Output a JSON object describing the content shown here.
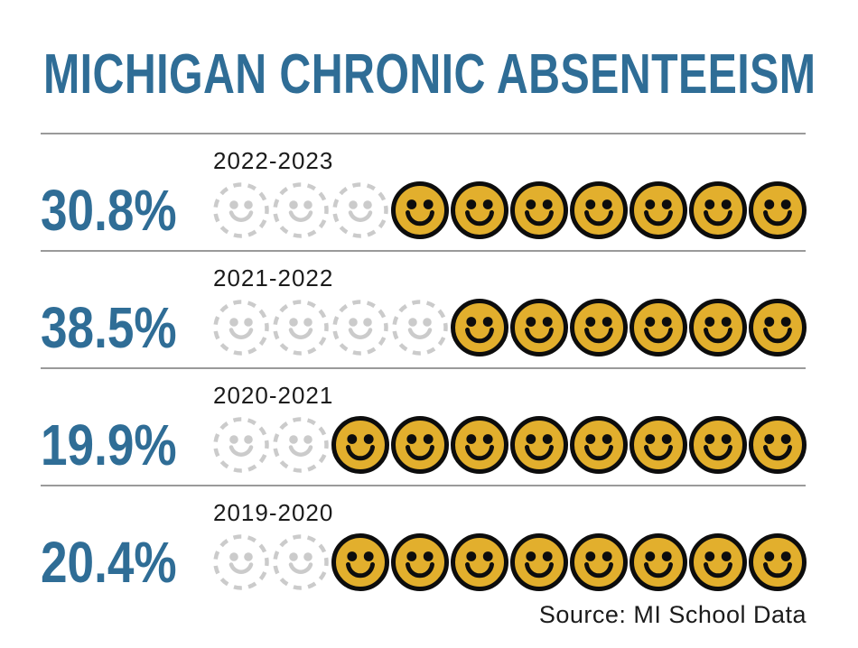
{
  "title": "MICHIGAN CHRONIC ABSENTEEISM",
  "source": "Source: MI School Data",
  "colors": {
    "accent_blue": "#2F6D96",
    "smiley_yellow": "#E2AF2D",
    "smiley_outline": "#0D0D0D",
    "ghost_gray": "#CBCBCB",
    "separator_gray": "#9A9A9A",
    "text_dark": "#1B1B1B",
    "background": "#FFFFFF"
  },
  "rows": [
    {
      "year": "2022-2023",
      "percent": "30.8%",
      "ghost": 3,
      "solid": 7
    },
    {
      "year": "2021-2022",
      "percent": "38.5%",
      "ghost": 4,
      "solid": 6
    },
    {
      "year": "2020-2021",
      "percent": "19.9%",
      "ghost": 2,
      "solid": 8
    },
    {
      "year": "2019-2020",
      "percent": "20.4%",
      "ghost": 2,
      "solid": 8
    }
  ],
  "chart_data": {
    "type": "bar",
    "variant": "pictogram rows of 10 smiley icons (dashed ghost icons + solid yellow icons)",
    "title": "MICHIGAN CHRONIC ABSENTEEISM",
    "categories": [
      "2022-2023",
      "2021-2022",
      "2020-2021",
      "2019-2020"
    ],
    "values": [
      30.8,
      38.5,
      19.9,
      20.4
    ],
    "value_labels": [
      "30.8%",
      "38.5%",
      "19.9%",
      "20.4%"
    ],
    "icons_per_row": 10,
    "ghost_icon_counts": [
      3,
      4,
      2,
      2
    ],
    "solid_icon_counts": [
      7,
      6,
      8,
      8
    ],
    "xlabel": "",
    "ylabel": "",
    "grid": false,
    "legend_position": "none",
    "source": "Source: MI School Data"
  }
}
